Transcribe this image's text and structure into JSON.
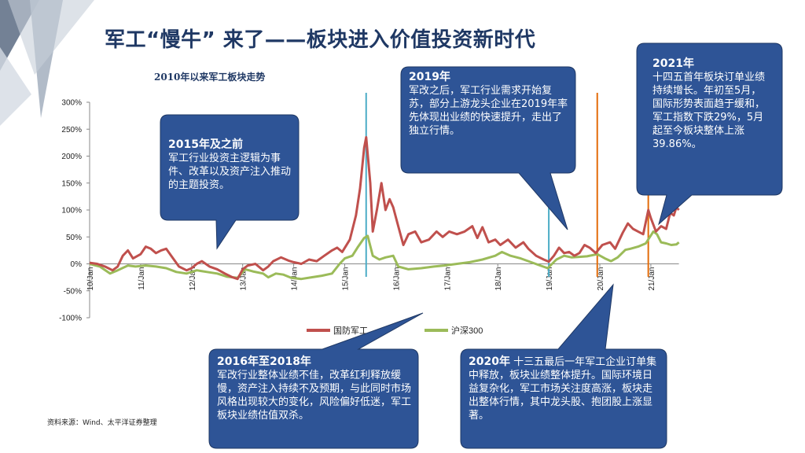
{
  "page": {
    "title": "军工“慢牛” 来了——板块进入价值投资新时代",
    "source": "资料来源：Wind、太平洋证券整理"
  },
  "chart_data": {
    "type": "line",
    "title": "2010年以来军工板块走势",
    "y_ticks": [
      "300%",
      "250%",
      "200%",
      "150%",
      "100%",
      "50%",
      "0%",
      "-50%",
      "-100%"
    ],
    "ylim": [
      -100,
      300
    ],
    "x_ticks": [
      "10/Jan",
      "11/Jan",
      "12/Jan",
      "13/Jan",
      "14/Jan",
      "15/Jan",
      "16/Jan",
      "17/Jan",
      "18/Jan",
      "19/Jan",
      "20/Jan",
      "21/Jan"
    ],
    "x_start_year": 2010,
    "x_end_year": 2021.55,
    "series": [
      {
        "name": "国防军工",
        "color": "#c0504d",
        "points": [
          [
            2010.0,
            2
          ],
          [
            2010.15,
            0
          ],
          [
            2010.3,
            -5
          ],
          [
            2010.45,
            -12
          ],
          [
            2010.55,
            -5
          ],
          [
            2010.65,
            15
          ],
          [
            2010.75,
            25
          ],
          [
            2010.85,
            10
          ],
          [
            2011.0,
            18
          ],
          [
            2011.1,
            32
          ],
          [
            2011.2,
            28
          ],
          [
            2011.3,
            20
          ],
          [
            2011.4,
            25
          ],
          [
            2011.5,
            28
          ],
          [
            2011.6,
            15
          ],
          [
            2011.75,
            -5
          ],
          [
            2011.9,
            -12
          ],
          [
            2012.0,
            -8
          ],
          [
            2012.1,
            0
          ],
          [
            2012.2,
            5
          ],
          [
            2012.35,
            -5
          ],
          [
            2012.5,
            -10
          ],
          [
            2012.65,
            -18
          ],
          [
            2012.8,
            -25
          ],
          [
            2012.9,
            -28
          ],
          [
            2013.0,
            -10
          ],
          [
            2013.1,
            -3
          ],
          [
            2013.25,
            0
          ],
          [
            2013.4,
            -12
          ],
          [
            2013.5,
            -5
          ],
          [
            2013.6,
            5
          ],
          [
            2013.75,
            12
          ],
          [
            2013.9,
            6
          ],
          [
            2014.0,
            3
          ],
          [
            2014.15,
            0
          ],
          [
            2014.3,
            8
          ],
          [
            2014.45,
            5
          ],
          [
            2014.6,
            15
          ],
          [
            2014.75,
            25
          ],
          [
            2014.85,
            30
          ],
          [
            2014.95,
            22
          ],
          [
            2015.1,
            45
          ],
          [
            2015.22,
            90
          ],
          [
            2015.3,
            140
          ],
          [
            2015.38,
            215
          ],
          [
            2015.42,
            235
          ],
          [
            2015.5,
            150
          ],
          [
            2015.55,
            60
          ],
          [
            2015.63,
            100
          ],
          [
            2015.72,
            150
          ],
          [
            2015.8,
            100
          ],
          [
            2015.88,
            120
          ],
          [
            2015.95,
            105
          ],
          [
            2016.05,
            70
          ],
          [
            2016.15,
            35
          ],
          [
            2016.25,
            55
          ],
          [
            2016.38,
            60
          ],
          [
            2016.5,
            40
          ],
          [
            2016.65,
            45
          ],
          [
            2016.8,
            60
          ],
          [
            2016.92,
            50
          ],
          [
            2017.05,
            60
          ],
          [
            2017.2,
            55
          ],
          [
            2017.35,
            60
          ],
          [
            2017.5,
            70
          ],
          [
            2017.6,
            48
          ],
          [
            2017.7,
            68
          ],
          [
            2017.82,
            40
          ],
          [
            2017.95,
            45
          ],
          [
            2018.05,
            35
          ],
          [
            2018.2,
            45
          ],
          [
            2018.35,
            30
          ],
          [
            2018.5,
            40
          ],
          [
            2018.6,
            28
          ],
          [
            2018.75,
            15
          ],
          [
            2018.9,
            8
          ],
          [
            2019.0,
            4
          ],
          [
            2019.1,
            15
          ],
          [
            2019.2,
            30
          ],
          [
            2019.3,
            20
          ],
          [
            2019.4,
            22
          ],
          [
            2019.5,
            15
          ],
          [
            2019.6,
            20
          ],
          [
            2019.7,
            35
          ],
          [
            2019.8,
            30
          ],
          [
            2019.92,
            20
          ],
          [
            2020.05,
            35
          ],
          [
            2020.2,
            40
          ],
          [
            2020.3,
            28
          ],
          [
            2020.45,
            58
          ],
          [
            2020.55,
            75
          ],
          [
            2020.65,
            65
          ],
          [
            2020.75,
            60
          ],
          [
            2020.85,
            55
          ],
          [
            2020.95,
            100
          ],
          [
            2021.0,
            85
          ],
          [
            2021.1,
            60
          ],
          [
            2021.2,
            70
          ],
          [
            2021.3,
            65
          ],
          [
            2021.38,
            95
          ],
          [
            2021.45,
            90
          ],
          [
            2021.5,
            105
          ],
          [
            2021.55,
            100
          ]
        ]
      },
      {
        "name": "沪深300",
        "color": "#9bbb59",
        "points": [
          [
            2010.0,
            0
          ],
          [
            2010.2,
            -5
          ],
          [
            2010.4,
            -18
          ],
          [
            2010.55,
            -12
          ],
          [
            2010.75,
            -3
          ],
          [
            2010.9,
            -5
          ],
          [
            2011.1,
            -3
          ],
          [
            2011.3,
            -5
          ],
          [
            2011.5,
            -8
          ],
          [
            2011.7,
            -15
          ],
          [
            2011.9,
            -18
          ],
          [
            2012.1,
            -12
          ],
          [
            2012.3,
            -15
          ],
          [
            2012.5,
            -18
          ],
          [
            2012.7,
            -24
          ],
          [
            2012.9,
            -26
          ],
          [
            2013.05,
            -10
          ],
          [
            2013.2,
            -14
          ],
          [
            2013.4,
            -18
          ],
          [
            2013.5,
            -25
          ],
          [
            2013.65,
            -18
          ],
          [
            2013.8,
            -20
          ],
          [
            2013.95,
            -26
          ],
          [
            2014.15,
            -28
          ],
          [
            2014.35,
            -25
          ],
          [
            2014.55,
            -22
          ],
          [
            2014.75,
            -18
          ],
          [
            2014.9,
            0
          ],
          [
            2015.0,
            10
          ],
          [
            2015.15,
            15
          ],
          [
            2015.25,
            30
          ],
          [
            2015.38,
            48
          ],
          [
            2015.45,
            52
          ],
          [
            2015.55,
            15
          ],
          [
            2015.68,
            8
          ],
          [
            2015.8,
            12
          ],
          [
            2015.95,
            15
          ],
          [
            2016.05,
            -5
          ],
          [
            2016.25,
            -10
          ],
          [
            2016.5,
            -8
          ],
          [
            2016.75,
            -5
          ],
          [
            2016.95,
            -3
          ],
          [
            2017.2,
            0
          ],
          [
            2017.45,
            3
          ],
          [
            2017.7,
            8
          ],
          [
            2017.95,
            15
          ],
          [
            2018.08,
            22
          ],
          [
            2018.25,
            15
          ],
          [
            2018.45,
            10
          ],
          [
            2018.6,
            5
          ],
          [
            2018.8,
            -2
          ],
          [
            2018.98,
            -8
          ],
          [
            2019.15,
            8
          ],
          [
            2019.3,
            15
          ],
          [
            2019.45,
            12
          ],
          [
            2019.6,
            13
          ],
          [
            2019.75,
            14
          ],
          [
            2019.95,
            18
          ],
          [
            2020.1,
            10
          ],
          [
            2020.22,
            5
          ],
          [
            2020.35,
            12
          ],
          [
            2020.5,
            26
          ],
          [
            2020.6,
            28
          ],
          [
            2020.75,
            32
          ],
          [
            2020.9,
            38
          ],
          [
            2021.05,
            60
          ],
          [
            2021.12,
            55
          ],
          [
            2021.2,
            40
          ],
          [
            2021.3,
            38
          ],
          [
            2021.4,
            35
          ],
          [
            2021.5,
            36
          ],
          [
            2021.55,
            40
          ]
        ]
      }
    ],
    "markers": [
      {
        "year": 2015.42,
        "color": "#4bacc6"
      },
      {
        "year": 2019.0,
        "color": "#4bacc6"
      },
      {
        "year": 2019.95,
        "color": "#e36c09"
      },
      {
        "year": 2020.95,
        "color": "#e36c09"
      }
    ],
    "legend": [
      {
        "name": "国防军工",
        "color": "#c0504d"
      },
      {
        "name": "沪深300",
        "color": "#9bbb59"
      }
    ]
  },
  "callouts": [
    {
      "id": "c2015",
      "head": "2015年及之前",
      "body": "军工行业投资主逻辑为事件、改革以及资产注入推动的主题投资。"
    },
    {
      "id": "c2019",
      "head": "2019年",
      "body": "军改之后，军工行业需求开始复苏，部分上游龙头企业在2019年率先体现出业绩的快速提升，走出了独立行情。"
    },
    {
      "id": "c2021",
      "head": "2021年",
      "body": "十四五首年板块订单业绩持续增长。年初至5月，国际形势表面趋于缓和，军工指数下跌29%，5月起至今板块整体上涨39.86%。"
    },
    {
      "id": "c2016",
      "head": "2016年至2018年",
      "body": "军改行业整体业绩不佳，改革红利释放缓慢，资产注入持续不及预期，与此同时市场风格出现较大的变化，风险偏好低迷，军工板块业绩估值双杀。"
    },
    {
      "id": "c2020",
      "head": "2020年",
      "body": "十三五最后一年军工企业订单集中释放，板块业绩整体提升。国际环境日益复杂化，军工市场关注度高涨，板块走出整体行情，其中龙头股、抱团股上涨显著。"
    }
  ]
}
